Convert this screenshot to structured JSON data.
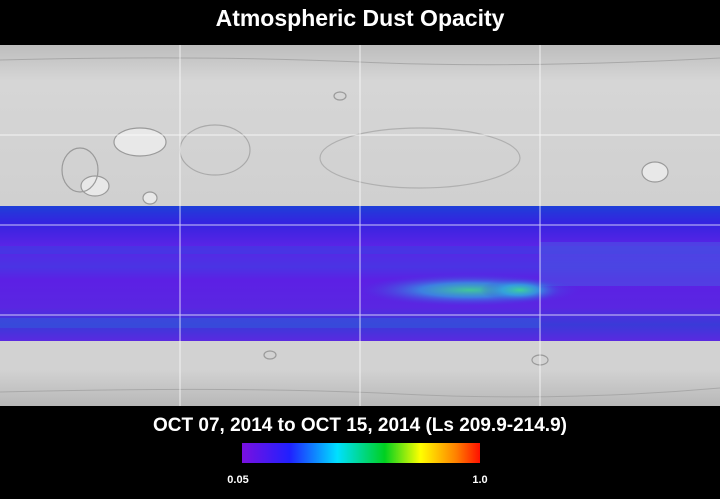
{
  "header": {
    "title": "Atmospheric Dust Opacity"
  },
  "caption": {
    "date_range": "OCT 07, 2014 to OCT 15, 2014 (Ls 209.9-214.9)"
  },
  "colorbar": {
    "min_label": "0.05",
    "max_label": "1.0"
  }
}
